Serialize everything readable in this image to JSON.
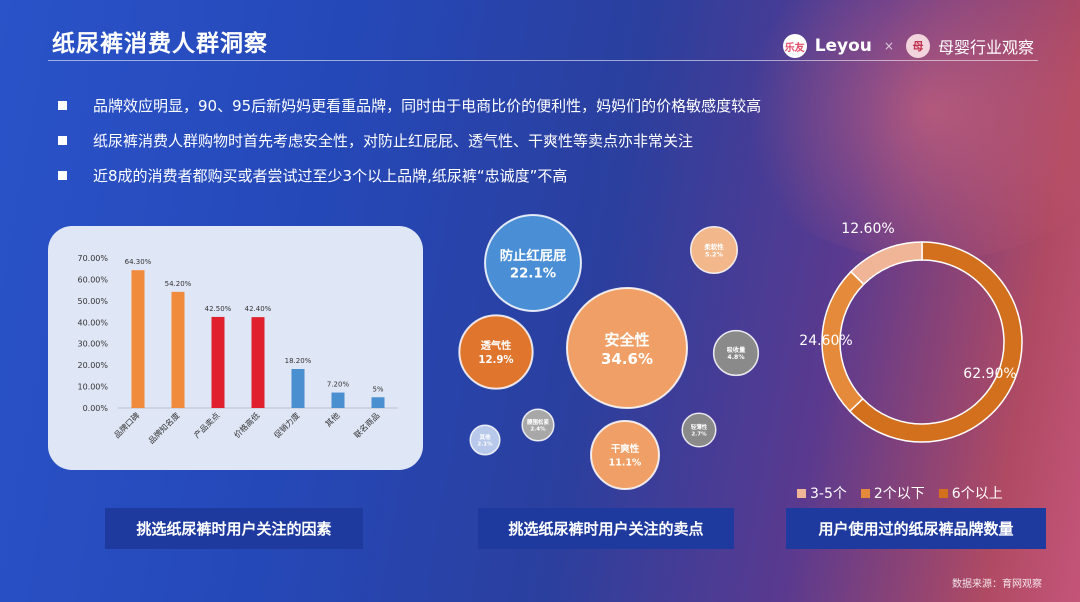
{
  "header": {
    "title": "纸尿裤消费人群洞察"
  },
  "logos": {
    "brand1_badge": "乐友",
    "brand1_text": "Leyou",
    "sep": "×",
    "brand2_badge": "母",
    "brand2_text": "母婴行业观察"
  },
  "bullets": [
    "品牌效应明显，90、95后新妈妈更看重品牌，同时由于电商比价的便利性，妈妈们的价格敏感度较高",
    "纸尿裤消费人群购物时首先考虑安全性，对防止红屁屁、透气性、干爽性等卖点亦非常关注",
    "近8成的消费者都购买或者尝试过至少3个以上品牌,纸尿裤“忠诚度”不高"
  ],
  "captions": {
    "bar": "挑选纸尿裤时用户关注的因素",
    "bubble": "挑选纸尿裤时用户关注的卖点",
    "donut": "用户使用过的纸尿裤品牌数量"
  },
  "source": "数据来源：育网观察",
  "chart_data": [
    {
      "type": "bar",
      "categories": [
        "品牌口碑",
        "品牌知名度",
        "产品卖点",
        "价格高低",
        "促销力度",
        "其他",
        "联名商品"
      ],
      "values": [
        64.3,
        54.2,
        42.5,
        42.4,
        18.2,
        7.2,
        5
      ],
      "data_labels": [
        "64.30%",
        "54.20%",
        "42.50%",
        "42.40%",
        "18.20%",
        "7.20%",
        "5%"
      ],
      "yticks": [
        "0.00%",
        "10.00%",
        "20.00%",
        "30.00%",
        "40.00%",
        "50.00%",
        "60.00%",
        "70.00%"
      ],
      "ylim": [
        0,
        70
      ],
      "colors": [
        "#f08a3c",
        "#f08a3c",
        "#e0202c",
        "#e0202c",
        "#4a8fd0",
        "#4a8fd0",
        "#4a8fd0"
      ]
    },
    {
      "type": "bubble",
      "items": [
        {
          "label": "安全性",
          "value": 34.6,
          "display": "34.6%",
          "color": "#f0a066"
        },
        {
          "label": "防止红屁屁",
          "value": 22.1,
          "display": "22.1%",
          "color": "#4a8fd6"
        },
        {
          "label": "透气性",
          "value": 12.9,
          "display": "12.9%",
          "color": "#e0762e"
        },
        {
          "label": "干爽性",
          "value": 11.1,
          "display": "11.1%",
          "color": "#f0a066"
        },
        {
          "label": "柔软性",
          "value": 5.2,
          "display": "5.2%",
          "color": "#f2b78a"
        },
        {
          "label": "吸收量",
          "value": 4.8,
          "display": "4.8%",
          "color": "#8a8a8a"
        },
        {
          "label": "轻薄性",
          "value": 2.7,
          "display": "2.7%",
          "color": "#8a8a8a"
        },
        {
          "label": "腰围松紧",
          "value": 2.4,
          "display": "2.4%",
          "color": "#a8a8a8"
        },
        {
          "label": "其他",
          "value": 2.1,
          "display": "2.1%",
          "color": "#b8c8ea"
        }
      ]
    },
    {
      "type": "pie",
      "donut": true,
      "slices": [
        {
          "label": "6个以上",
          "value": 62.9,
          "display": "62.90%",
          "color": "#d2701e"
        },
        {
          "label": "2个以下",
          "value": 24.6,
          "display": "24.60%",
          "color": "#e58a3a"
        },
        {
          "label": "3-5个",
          "value": 12.6,
          "display": "12.60%",
          "color": "#f0b597"
        }
      ],
      "legend": [
        {
          "label": "3-5个",
          "color": "#f0b597"
        },
        {
          "label": "2个以下",
          "color": "#e58a3a"
        },
        {
          "label": "6个以上",
          "color": "#d2701e"
        }
      ],
      "legend_position": "bottom"
    }
  ]
}
